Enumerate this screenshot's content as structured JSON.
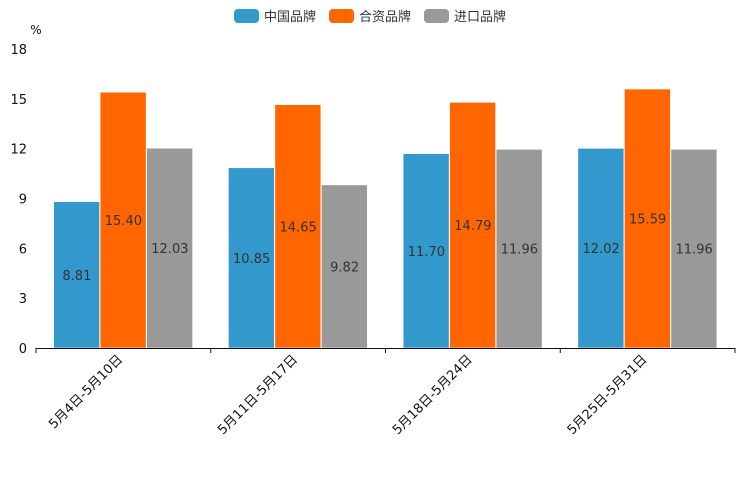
{
  "chart_data": {
    "type": "bar",
    "title": "",
    "ylabel": "%",
    "xlabel": "",
    "ylim": [
      0,
      18
    ],
    "yticks": [
      0,
      3,
      6,
      9,
      12,
      15,
      18
    ],
    "categories": [
      "5月4日-5月10日",
      "5月11日-5月17日",
      "5月18日-5月24日",
      "5月25日-5月31日"
    ],
    "series": [
      {
        "name": "中国品牌",
        "color": "#3399cc",
        "values": [
          8.81,
          10.85,
          11.7,
          12.02
        ],
        "labels": [
          "8.81",
          "10.85",
          "11.70",
          "12.02"
        ]
      },
      {
        "name": "合资品牌",
        "color": "#ff6600",
        "values": [
          15.4,
          14.65,
          14.79,
          15.59
        ],
        "labels": [
          "15.40",
          "14.65",
          "14.79",
          "15.59"
        ]
      },
      {
        "name": "进口品牌",
        "color": "#999999",
        "values": [
          12.03,
          9.82,
          11.96,
          11.96
        ],
        "labels": [
          "12.03",
          "9.82",
          "11.96",
          "11.96"
        ]
      }
    ],
    "legend": "top-center",
    "grid": false
  }
}
